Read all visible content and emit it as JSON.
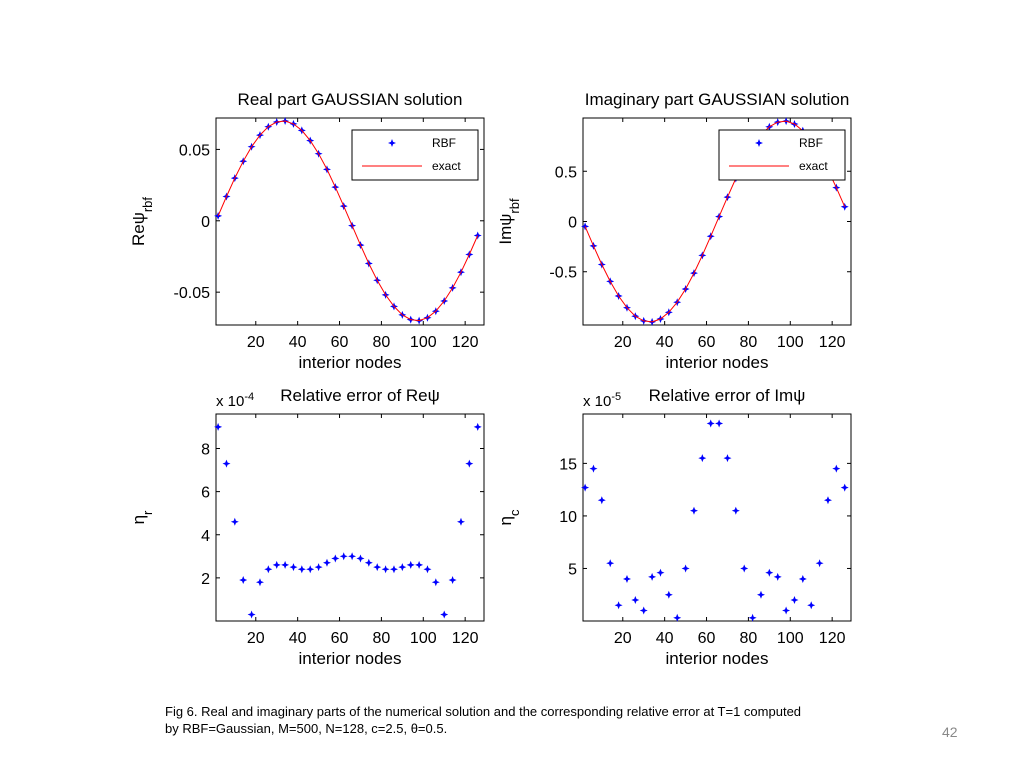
{
  "chart_data": [
    {
      "type": "scatter",
      "title": "Real part GAUSSIAN solution",
      "xlabel": "interior nodes",
      "ylabel": "Reψ",
      "ylabel_sub": "rbf",
      "x": [
        2,
        6,
        10,
        14,
        18,
        22,
        26,
        30,
        34,
        38,
        42,
        46,
        50,
        54,
        58,
        62,
        66,
        70,
        74,
        78,
        82,
        86,
        90,
        94,
        98,
        102,
        106,
        110,
        114,
        118,
        122,
        126
      ],
      "series": [
        {
          "name": "RBF",
          "color": "#0000ff",
          "values": [
            0.0034,
            0.017,
            0.0299,
            0.0417,
            0.0519,
            0.06,
            0.0659,
            0.0692,
            0.0699,
            0.0679,
            0.0633,
            0.0562,
            0.047,
            0.036,
            0.0236,
            0.0103,
            -0.0034,
            -0.017,
            -0.0299,
            -0.0417,
            -0.0519,
            -0.06,
            -0.0659,
            -0.0692,
            -0.0699,
            -0.0679,
            -0.0633,
            -0.0562,
            -0.047,
            -0.036,
            -0.0236,
            -0.0103
          ]
        },
        {
          "name": "exact",
          "color": "#ff0000",
          "values": [
            0.0034,
            0.017,
            0.0299,
            0.0417,
            0.0519,
            0.06,
            0.0659,
            0.0692,
            0.0699,
            0.0679,
            0.0633,
            0.0562,
            0.047,
            0.036,
            0.0236,
            0.0103,
            -0.0034,
            -0.017,
            -0.0299,
            -0.0417,
            -0.0519,
            -0.06,
            -0.0659,
            -0.0692,
            -0.0699,
            -0.0679,
            -0.0633,
            -0.0562,
            -0.047,
            -0.036,
            -0.0236,
            -0.0103
          ]
        }
      ],
      "xlim": [
        1,
        129
      ],
      "ylim": [
        -0.073,
        0.072
      ],
      "xticks": [
        20,
        40,
        60,
        80,
        100,
        120
      ],
      "yticks": [
        -0.05,
        0,
        0.05
      ],
      "legend": "upper right"
    },
    {
      "type": "scatter",
      "title": "Imaginary part GAUSSIAN solution",
      "xlabel": "interior nodes",
      "ylabel": "Imψ",
      "ylabel_sub": "rbf",
      "x": [
        2,
        6,
        10,
        14,
        18,
        22,
        26,
        30,
        34,
        38,
        42,
        46,
        50,
        54,
        58,
        62,
        66,
        70,
        74,
        78,
        82,
        86,
        90,
        94,
        98,
        102,
        106,
        110,
        114,
        118,
        122,
        126
      ],
      "series": [
        {
          "name": "RBF",
          "color": "#0000ff",
          "values": [
            -0.049,
            -0.243,
            -0.428,
            -0.596,
            -0.741,
            -0.858,
            -0.942,
            -0.989,
            -0.999,
            -0.97,
            -0.904,
            -0.803,
            -0.672,
            -0.514,
            -0.337,
            -0.147,
            0.049,
            0.243,
            0.428,
            0.596,
            0.741,
            0.858,
            0.942,
            0.989,
            0.999,
            0.97,
            0.904,
            0.803,
            0.672,
            0.514,
            0.337,
            0.147
          ]
        },
        {
          "name": "exact",
          "color": "#ff0000",
          "values": [
            -0.049,
            -0.243,
            -0.428,
            -0.596,
            -0.741,
            -0.858,
            -0.942,
            -0.989,
            -0.999,
            -0.97,
            -0.904,
            -0.803,
            -0.672,
            -0.514,
            -0.337,
            -0.147,
            0.049,
            0.243,
            0.428,
            0.596,
            0.741,
            0.858,
            0.942,
            0.989,
            0.999,
            0.97,
            0.904,
            0.803,
            0.672,
            0.514,
            0.337,
            0.147
          ]
        }
      ],
      "xlim": [
        1,
        129
      ],
      "ylim": [
        -1.03,
        1.03
      ],
      "xticks": [
        20,
        40,
        60,
        80,
        100,
        120
      ],
      "yticks": [
        -0.5,
        0,
        0.5
      ],
      "legend": "upper right"
    },
    {
      "type": "scatter",
      "title": "Relative error of Reψ",
      "xlabel": "interior nodes",
      "ylabel": "η",
      "ylabel_sub": "r",
      "scale_base": "x 10",
      "scale_exponent": "-4",
      "x": [
        2,
        6,
        10,
        14,
        18,
        22,
        26,
        30,
        34,
        38,
        42,
        46,
        50,
        54,
        58,
        62,
        66,
        70,
        74,
        78,
        82,
        86,
        90,
        94,
        98,
        102,
        106,
        110,
        114,
        118,
        122,
        126
      ],
      "series": [
        {
          "name": "RBF",
          "color": "#0000ff",
          "values": [
            9.0,
            7.3,
            4.6,
            1.9,
            0.3,
            1.8,
            2.4,
            2.6,
            2.6,
            2.5,
            2.4,
            2.4,
            2.5,
            2.7,
            2.9,
            3.0,
            3.0,
            2.9,
            2.7,
            2.5,
            2.4,
            2.4,
            2.5,
            2.6,
            2.6,
            2.4,
            1.8,
            0.3,
            1.9,
            4.6,
            7.3,
            9.0
          ]
        }
      ],
      "xlim": [
        1,
        129
      ],
      "ylim": [
        0,
        9.6
      ],
      "xticks": [
        20,
        40,
        60,
        80,
        100,
        120
      ],
      "yticks": [
        2,
        4,
        6,
        8
      ]
    },
    {
      "type": "scatter",
      "title": "Relative error of Imψ",
      "xlabel": "interior nodes",
      "ylabel": "η",
      "ylabel_sub": "c",
      "scale_base": "x 10",
      "scale_exponent": "-5",
      "x": [
        2,
        6,
        10,
        14,
        18,
        22,
        26,
        30,
        34,
        38,
        42,
        46,
        50,
        54,
        58,
        62,
        66,
        70,
        74,
        78,
        82,
        86,
        90,
        94,
        98,
        102,
        106,
        110,
        114,
        118,
        122,
        126
      ],
      "series": [
        {
          "name": "RBF",
          "color": "#0000ff",
          "values": [
            12.7,
            14.5,
            11.5,
            5.5,
            1.5,
            4.0,
            2.0,
            1.0,
            4.2,
            4.6,
            2.5,
            0.3,
            5.0,
            10.5,
            15.5,
            18.8,
            18.8,
            15.5,
            10.5,
            5.0,
            0.3,
            2.5,
            4.6,
            4.2,
            1.0,
            2.0,
            4.0,
            1.5,
            5.5,
            11.5,
            14.5,
            12.7
          ]
        }
      ],
      "xlim": [
        1,
        129
      ],
      "ylim": [
        0,
        19.7
      ],
      "xticks": [
        20,
        40,
        60,
        80,
        100,
        120
      ],
      "yticks": [
        5,
        10,
        15
      ]
    }
  ],
  "caption": [
    "Fig 6. Real and imaginary parts of the numerical solution and the corresponding relative error at T=1 computed",
    "by RBF=Gaussian, M=500, N=128, c=2.5, θ=0.5."
  ],
  "page_number": "42"
}
